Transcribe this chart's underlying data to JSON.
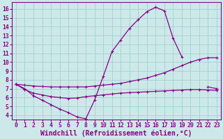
{
  "bg_color": "#cce8e8",
  "line_color": "#880088",
  "grid_color": "#99cccc",
  "xlabel": "Windchill (Refroidissement éolien,°C)",
  "xlabel_fontsize": 7.0,
  "tick_fontsize": 5.8,
  "ylim": [
    3.5,
    16.8
  ],
  "xlim": [
    -0.5,
    23.5
  ],
  "yticks": [
    4,
    5,
    6,
    7,
    8,
    9,
    10,
    11,
    12,
    13,
    14,
    15,
    16
  ],
  "xticks": [
    0,
    1,
    2,
    3,
    4,
    5,
    6,
    7,
    8,
    9,
    10,
    11,
    12,
    13,
    14,
    15,
    16,
    17,
    18,
    19,
    20,
    21,
    22,
    23
  ],
  "hours": [
    0,
    1,
    2,
    3,
    4,
    5,
    6,
    7,
    8,
    9,
    10,
    11,
    12,
    13,
    14,
    15,
    16,
    17,
    18,
    19,
    20,
    21,
    22,
    23
  ],
  "curve_main": [
    7.5,
    7.0,
    6.2,
    5.7,
    5.2,
    4.7,
    4.3,
    3.8,
    3.6,
    5.7,
    8.4,
    11.2,
    12.5,
    13.8,
    14.8,
    15.7,
    16.2,
    15.8,
    12.7,
    10.6,
    null,
    null,
    7.2,
    7.0
  ],
  "curve_straight": [
    7.5,
    null,
    null,
    null,
    null,
    null,
    null,
    null,
    null,
    null,
    null,
    null,
    null,
    null,
    null,
    null,
    null,
    null,
    null,
    null,
    null,
    null,
    null,
    7.0
  ],
  "curve_mid_rise": [
    7.5,
    7.4,
    7.3,
    7.25,
    7.2,
    7.2,
    7.2,
    7.2,
    7.2,
    7.3,
    7.4,
    7.5,
    7.6,
    7.8,
    8.0,
    8.2,
    8.5,
    8.8,
    9.2,
    9.6,
    10.0,
    10.3,
    10.5,
    10.5
  ],
  "curve_low": [
    7.5,
    6.9,
    6.5,
    6.3,
    6.1,
    6.0,
    5.9,
    5.95,
    6.1,
    6.2,
    6.3,
    6.4,
    6.5,
    6.55,
    6.6,
    6.65,
    6.7,
    6.75,
    6.8,
    6.85,
    6.9,
    6.9,
    6.85,
    6.8
  ]
}
